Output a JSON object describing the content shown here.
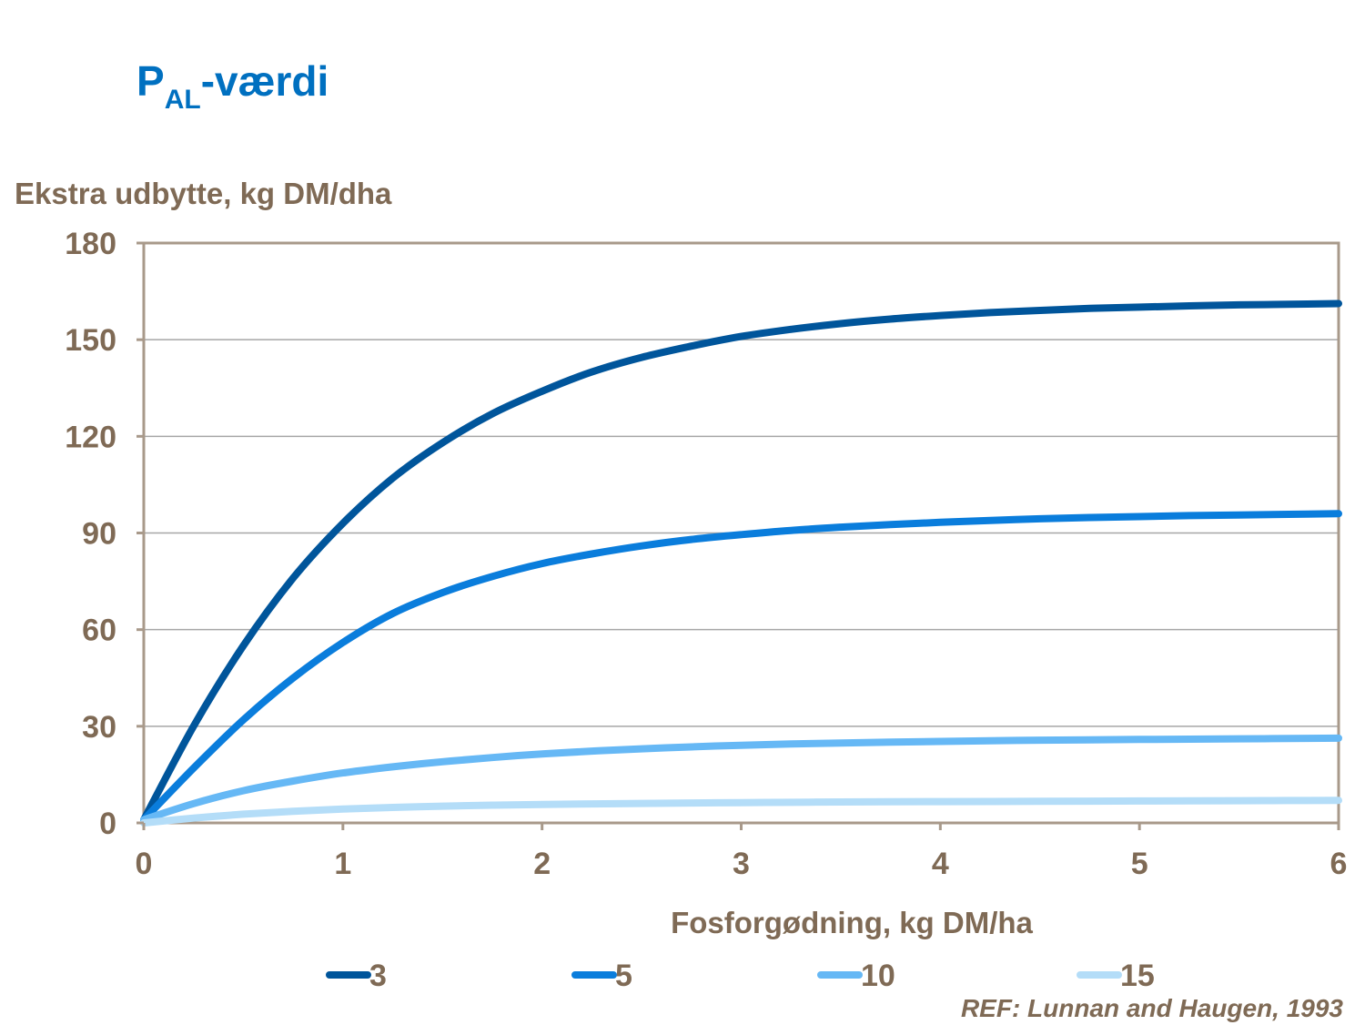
{
  "header": {
    "title_main": "P",
    "title_sub": "AL",
    "title_rest": "-værdi"
  },
  "reference": "REF: Lunnan and Haugen, 1993",
  "colors": {
    "title": "#0070c0",
    "text": "#7f6a55",
    "grid": "#a6a6a6",
    "frame": "#a8998a"
  },
  "chart_data": {
    "type": "line",
    "title": "",
    "ylabel": "Ekstra udbytte, kg DM/dha",
    "xlabel": "Fosforgødning, kg DM/ha",
    "xlim": [
      0,
      6
    ],
    "ylim": [
      0,
      180
    ],
    "x_ticks": [
      "0",
      "1",
      "2",
      "3",
      "4",
      "5",
      "6"
    ],
    "y_ticks": [
      "0",
      "30",
      "60",
      "90",
      "120",
      "150",
      "180"
    ],
    "grid": "horizontal",
    "legend_position": "bottom",
    "x": [
      0,
      0.25,
      0.5,
      0.75,
      1,
      1.25,
      1.5,
      1.75,
      2,
      2.25,
      2.5,
      2.75,
      3,
      3.25,
      3.5,
      3.75,
      4,
      4.25,
      4.5,
      4.75,
      5,
      5.25,
      5.5,
      5.75,
      6
    ],
    "series": [
      {
        "name": "3",
        "color": "#00559b",
        "values": [
          1,
          30,
          55,
          76,
          93,
          107,
          118,
          127,
          134,
          140,
          144.5,
          148,
          151,
          153.2,
          155,
          156.4,
          157.5,
          158.4,
          159.1,
          159.7,
          160.1,
          160.5,
          160.8,
          161,
          161.2
        ]
      },
      {
        "name": "5",
        "color": "#0a7ddc",
        "values": [
          1,
          17,
          32,
          45,
          56,
          65,
          71.5,
          76.5,
          80.5,
          83.5,
          86,
          88,
          89.5,
          90.8,
          91.8,
          92.6,
          93.3,
          93.9,
          94.4,
          94.8,
          95.1,
          95.4,
          95.6,
          95.8,
          96
        ]
      },
      {
        "name": "10",
        "color": "#66b8f5",
        "values": [
          1,
          6,
          10,
          13,
          15.5,
          17.4,
          19,
          20.3,
          21.4,
          22.3,
          23,
          23.6,
          24.1,
          24.5,
          24.8,
          25.1,
          25.3,
          25.5,
          25.7,
          25.8,
          25.9,
          26,
          26.1,
          26.2,
          26.3
        ]
      },
      {
        "name": "15",
        "color": "#b4ddf8",
        "values": [
          0,
          1.5,
          2.7,
          3.6,
          4.3,
          4.8,
          5.2,
          5.5,
          5.7,
          5.9,
          6.05,
          6.2,
          6.3,
          6.4,
          6.5,
          6.55,
          6.6,
          6.65,
          6.7,
          6.75,
          6.8,
          6.85,
          6.9,
          6.95,
          7
        ]
      }
    ]
  }
}
